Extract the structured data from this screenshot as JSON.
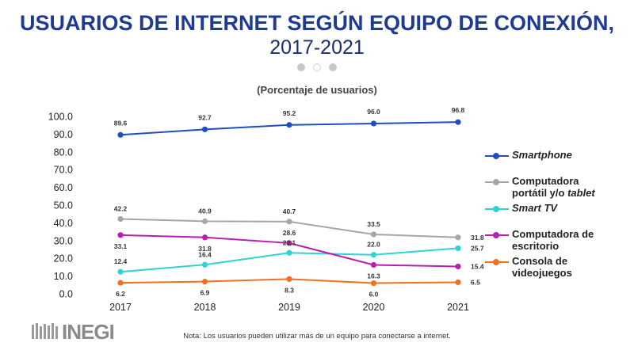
{
  "header": {
    "title": "USUARIOS DE INTERNET SEGÚN EQUIPO DE CONEXIÓN,",
    "subtitle": "2017-2021",
    "unit_label": "(Porcentaje de usuarios)"
  },
  "note": "Nota: Los usuarios pueden utilizar más de un equipo para conectarse a internet.",
  "logo": {
    "text": "INEGI"
  },
  "colors": {
    "title": "#1f3a93",
    "smartphone": "#1f4fbf",
    "laptop": "#a6a6a6",
    "smarttv": "#2fd3d3",
    "desktop": "#bb1cb4",
    "console": "#f07020"
  },
  "chart_data": {
    "type": "line",
    "x": [
      "2017",
      "2018",
      "2019",
      "2020",
      "2021"
    ],
    "ylim": [
      0,
      100
    ],
    "yticks": [
      "0.0",
      "10.0",
      "20.0",
      "30.0",
      "40.0",
      "50.0",
      "60.0",
      "70.0",
      "80.0",
      "90.0",
      "100.0"
    ],
    "grid": false,
    "legend": "right",
    "series": [
      {
        "key": "smartphone",
        "name": "Smartphone",
        "color": "#1f4fbf",
        "values": [
          89.6,
          92.7,
          95.2,
          96.0,
          96.8
        ],
        "labels": [
          "89.6",
          "92.7",
          "95.2",
          "96.0",
          "96.8"
        ]
      },
      {
        "key": "laptop",
        "name": "Computadora portátil y/o tablet",
        "color": "#a6a6a6",
        "values": [
          42.2,
          40.9,
          40.7,
          33.5,
          31.8
        ],
        "labels": [
          "42.2",
          "40.9",
          "40.7",
          "33.5",
          "31.8"
        ]
      },
      {
        "key": "smarttv",
        "name": "Smart TV",
        "color": "#2fd3d3",
        "values": [
          12.4,
          16.4,
          23.1,
          22.0,
          25.7
        ],
        "labels": [
          "12.4",
          "16.4",
          "23.1",
          "22.0",
          "25.7"
        ]
      },
      {
        "key": "desktop",
        "name": "Computadora de escritorio",
        "color": "#bb1cb4",
        "values": [
          33.1,
          31.8,
          28.6,
          16.3,
          15.4
        ],
        "labels": [
          "33.1",
          "31.8",
          "28.6",
          "16.3",
          "15.4"
        ]
      },
      {
        "key": "console",
        "name": "Consola de videojuegos",
        "color": "#f07020",
        "values": [
          6.2,
          6.9,
          8.3,
          6.0,
          6.5
        ],
        "labels": [
          "6.2",
          "6.9",
          "8.3",
          "6.0",
          "6.5"
        ]
      }
    ],
    "legend_entries": [
      {
        "key": "smartphone",
        "line1": "Smartphone",
        "line2": "",
        "line2_italic": ""
      },
      {
        "key": "laptop",
        "line1": "Computadora",
        "line2": "portátil y/o ",
        "line2_italic": "tablet"
      },
      {
        "key": "smarttv",
        "line1": "Smart TV",
        "line2": "",
        "line2_italic": ""
      },
      {
        "key": "desktop",
        "line1": "Computadora de",
        "line2": "escritorio",
        "line2_italic": ""
      },
      {
        "key": "console",
        "line1": "Consola de",
        "line2": "videojuegos",
        "line2_italic": ""
      }
    ]
  }
}
